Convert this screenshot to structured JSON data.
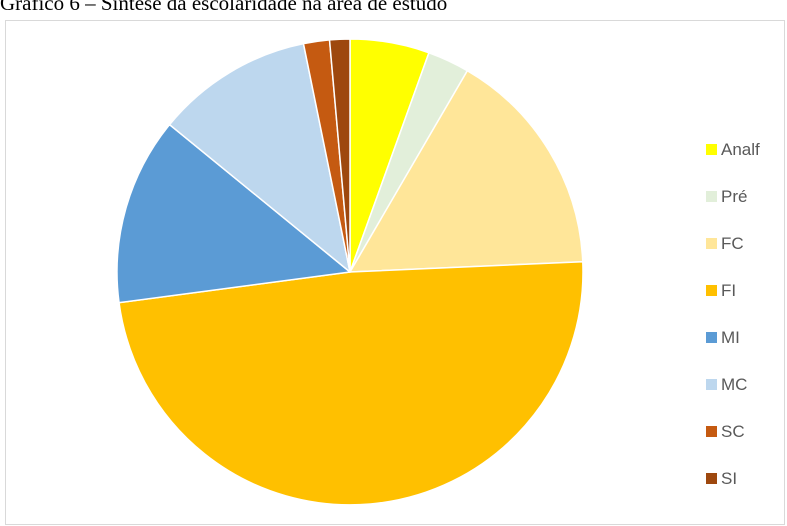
{
  "page": {
    "title": "Gráfico 6 – Síntese da escolaridade na área de estudo"
  },
  "chart_data": {
    "type": "pie",
    "title": "",
    "start_angle_deg": 0,
    "direction": "clockwise",
    "legend_position": "right",
    "slices": [
      {
        "label": "Analf",
        "value": 5.5,
        "color": "#FFFF00"
      },
      {
        "label": "Pré",
        "value": 2.9,
        "color": "#E2EFDA"
      },
      {
        "label": "FC",
        "value": 15.9,
        "color": "#FFE699"
      },
      {
        "label": "FI",
        "value": 48.6,
        "color": "#FFC000"
      },
      {
        "label": "MI",
        "value": 13.0,
        "color": "#5B9BD5"
      },
      {
        "label": "MC",
        "value": 10.9,
        "color": "#BDD7EE"
      },
      {
        "label": "SC",
        "value": 1.8,
        "color": "#C55A11"
      },
      {
        "label": "SI",
        "value": 1.4,
        "color": "#9E480E"
      }
    ]
  }
}
